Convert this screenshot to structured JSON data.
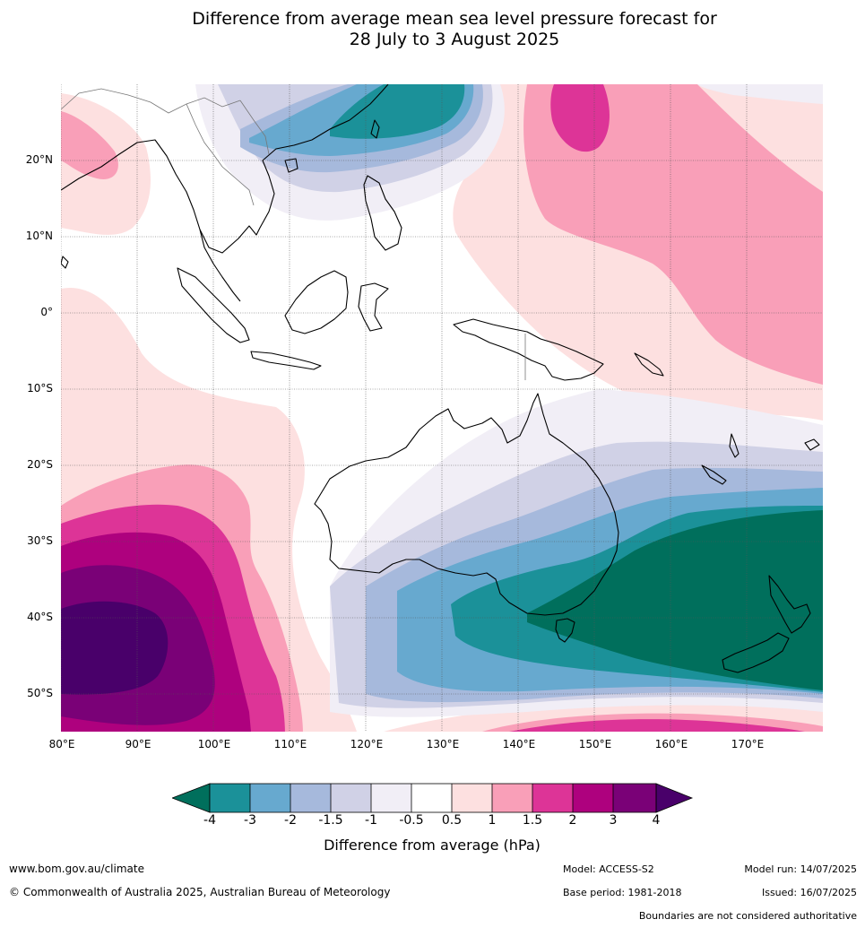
{
  "title": {
    "line1": "Difference from average mean sea level pressure forecast for",
    "line2": "28 July to 3 August 2025"
  },
  "map": {
    "lon_labels": [
      "80°E",
      "90°E",
      "100°E",
      "110°E",
      "120°E",
      "130°E",
      "140°E",
      "150°E",
      "160°E",
      "170°E"
    ],
    "lat_labels": [
      "20°N",
      "10°N",
      "0°",
      "10°S",
      "20°S",
      "30°S",
      "40°S",
      "50°S"
    ],
    "lon_range": [
      80,
      180
    ],
    "lat_range": [
      -55,
      30
    ],
    "gridlines": true
  },
  "colorbar": {
    "label": "Difference from average (hPa)",
    "ticks": [
      "-4",
      "-3",
      "-2",
      "-1.5",
      "-1",
      "-0.5",
      "0.5",
      "1",
      "1.5",
      "2",
      "3",
      "4"
    ],
    "colors": {
      "below_-4": "#006f5c",
      "-4_-3": "#1b9199",
      "-3_-2": "#67a9cf",
      "-2_-1.5": "#a6b9dc",
      "-1.5_-1": "#d0d1e6",
      "-1_-0.5": "#f1eef6",
      "-0.5_0.5": "#ffffff",
      "0.5_1": "#fde0e0",
      "1_1.5": "#f99fb8",
      "1.5_2": "#dd3497",
      "2_3": "#ae017e",
      "3_4": "#7a0177",
      "above_4": "#49006a"
    }
  },
  "footer": {
    "url": "www.bom.gov.au/climate",
    "copyright": "© Commonwealth of Australia 2025, Australian Bureau of Meteorology",
    "model": "Model: ACCESS-S2",
    "base_period": "Base period: 1981-2018",
    "model_run": "Model run: 14/07/2025",
    "issued": "Issued: 16/07/2025",
    "disclaimer": "Boundaries are not considered authoritative"
  }
}
